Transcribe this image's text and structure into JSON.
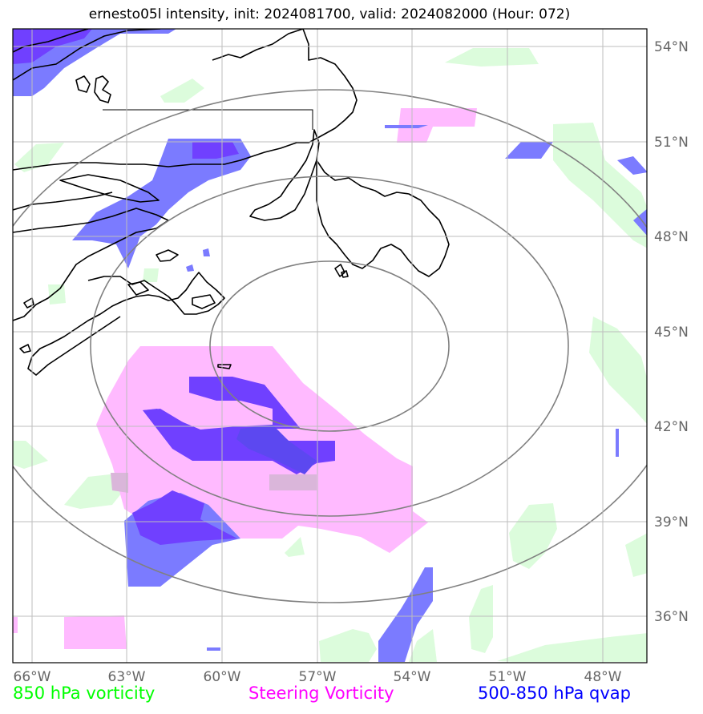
{
  "title": "ernesto05l intensity, init: 2024081700, valid: 2024082000 (Hour: 072)",
  "legend": [
    {
      "label": "850 hPa vorticity",
      "color": "#00ff00"
    },
    {
      "label": "Steering Vorticity",
      "color": "#ff00ff"
    },
    {
      "label": "500-850 hPa qvap",
      "color": "#0000ff"
    }
  ],
  "lon_ticks": [
    "66°W",
    "63°W",
    "60°W",
    "57°W",
    "54°W",
    "51°W",
    "48°W"
  ],
  "lat_ticks": [
    "54°N",
    "51°N",
    "48°N",
    "45°N",
    "42°N",
    "39°N",
    "36°N"
  ],
  "colors": {
    "vorticity_850": "#dcfcdc",
    "steering_vorticity": "#ffbaff",
    "qvap_light": "#7b7bff",
    "qvap_dark": "#7040ff",
    "rings": "#808080",
    "coast": "#000000",
    "grid": "#c8c8c8"
  }
}
